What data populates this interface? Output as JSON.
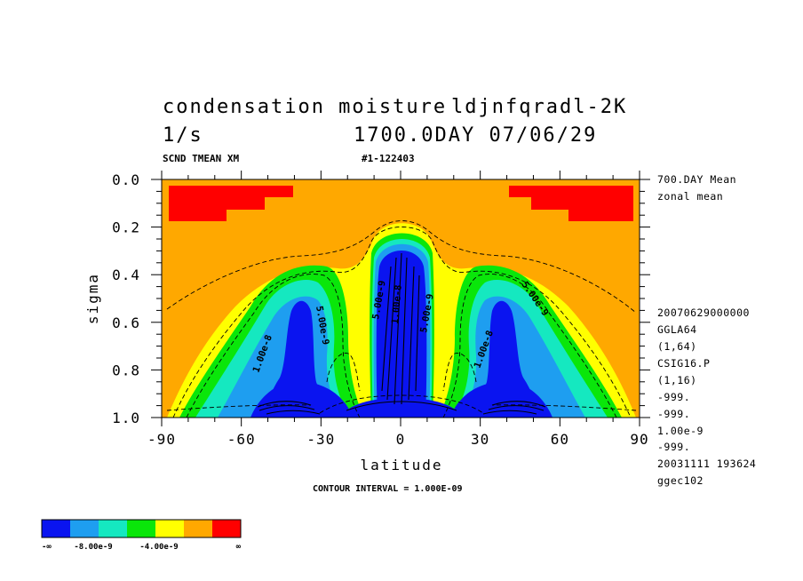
{
  "title": {
    "line1_left": "condensation moisture",
    "line1_right": "ldjnfqradl-2K",
    "line2_left": "1/s",
    "line2_right": "1700.0DAY 07/06/29"
  },
  "subtitle": {
    "left": "SCND TMEAN XM",
    "right": "#1-122403"
  },
  "side_info": [
    "700.DAY Mean",
    "zonal mean",
    "20070629000000",
    "GGLA64",
    "(1,64)",
    "CSIG16.P",
    "(1,16)",
    "-999.",
    "-999.",
    "1.00e-9",
    "-999.",
    "20031111 193624",
    "ggec102"
  ],
  "contour_interval": "CONTOUR INTERVAL = 1.000E-09",
  "legend": {
    "colors": [
      "#0a14f0",
      "#1e9ef0",
      "#15e8c0",
      "#0ae60a",
      "#ffff00",
      "#ffa800",
      "#ff0000"
    ],
    "labels": [
      "-∞",
      "-8.00e-9",
      "-4.00e-9",
      "∞"
    ]
  },
  "chart_data": {
    "type": "heatmap",
    "xlabel": "latitude",
    "ylabel": "sigma",
    "xlim": [
      -90,
      90
    ],
    "ylim": [
      1.0,
      0.0
    ],
    "xticks": [
      "-90",
      "-60",
      "-30",
      "0",
      "30",
      "60",
      "90"
    ],
    "yticks": [
      "0.0",
      "0.2",
      "0.4",
      "0.6",
      "0.8",
      "1.0"
    ],
    "contour_labels": [
      "5.00e-9",
      "1.00e-8",
      "5.00e-9",
      "1.00e-8",
      "5.00e-9",
      "1.00e-8",
      "5.00e-9"
    ],
    "bands": [
      {
        "level": "below -1.0e-8",
        "color": "#0a14f0",
        "regions": [
          "(-50..-30, 0.52..1.0)",
          "(-12..12, 0.28..1.0)",
          "(30..50, 0.52..1.0)"
        ]
      },
      {
        "level": "-1.0e-8 to -8e-9",
        "color": "#1e9ef0"
      },
      {
        "level": "-8e-9 to -6e-9",
        "color": "#15e8c0"
      },
      {
        "level": "-6e-9 to -4e-9",
        "color": "#0ae60a"
      },
      {
        "level": "-4e-9 to -2e-9",
        "color": "#ffff00"
      },
      {
        "level": "-2e-9 to 0",
        "color": "#ffa800"
      },
      {
        "level": "above 0",
        "color": "#ff0000",
        "regions": [
          "(-88..-45, 0.02..0.18)",
          "(45..88, 0.02..0.18)"
        ]
      }
    ],
    "grid": false
  }
}
